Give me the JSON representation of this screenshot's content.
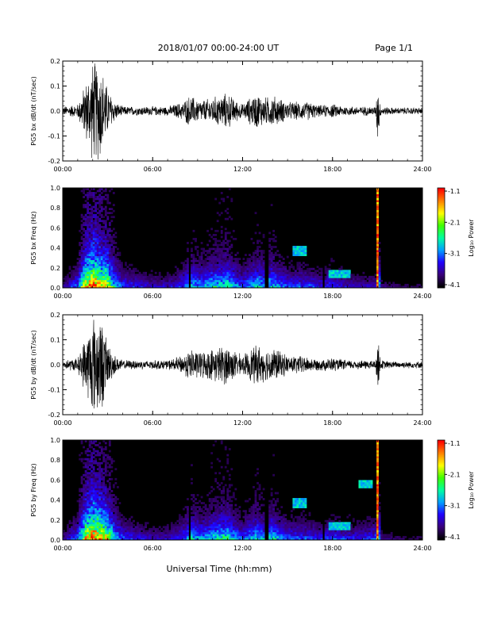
{
  "header": {
    "title": "2018/01/07  00:00-24:00 UT",
    "page": "Page 1/1"
  },
  "footer": {
    "xlabel": "Universal Time (hh:mm)"
  },
  "colors": {
    "trace": "#000000",
    "spectrogram_background": "#000000",
    "colormap": [
      "#000000",
      "#3a007a",
      "#2000ff",
      "#00a0ff",
      "#00ffa0",
      "#40ff00",
      "#ffff00",
      "#ff8000",
      "#ff0000"
    ]
  },
  "chart_data": [
    {
      "type": "line",
      "name": "bx-waveform",
      "ylabel": "PG5 bx dB/dt (nT/sec)",
      "xlim": [
        0,
        24
      ],
      "ylim": [
        -0.2,
        0.2
      ],
      "x_ticks": [
        "00:00",
        "06:00",
        "12:00",
        "18:00",
        "24:00"
      ],
      "y_ticks": [
        "-0.2",
        "-0.1",
        "0.0",
        "0.1",
        "0.2"
      ],
      "envelope": {
        "x_hours": [
          0,
          1,
          1.5,
          2,
          2.5,
          3,
          3.5,
          4,
          5,
          6,
          7,
          8,
          8.5,
          9,
          9.5,
          10,
          11,
          11.5,
          12,
          12.5,
          13,
          13.5,
          14,
          15,
          16,
          16.5,
          17,
          18,
          19,
          20,
          20.9,
          21,
          21.2,
          22,
          23,
          24
        ],
        "amplitude": [
          0.02,
          0.03,
          0.12,
          0.22,
          0.22,
          0.1,
          0.04,
          0.02,
          0.02,
          0.02,
          0.02,
          0.04,
          0.07,
          0.05,
          0.05,
          0.06,
          0.08,
          0.05,
          0.03,
          0.06,
          0.08,
          0.06,
          0.07,
          0.04,
          0.04,
          0.04,
          0.025,
          0.03,
          0.02,
          0.02,
          0.02,
          0.15,
          0.02,
          0.015,
          0.015,
          0.015
        ]
      }
    },
    {
      "type": "heatmap",
      "name": "bx-spectrogram",
      "ylabel": "PG5 bx Freq (Hz)",
      "xlim": [
        0,
        24
      ],
      "ylim": [
        0,
        1.0
      ],
      "x_ticks": [
        "00:00",
        "06:00",
        "12:00",
        "18:00",
        "24:00"
      ],
      "y_ticks": [
        "0.0",
        "0.2",
        "0.4",
        "0.6",
        "0.8",
        "1.0"
      ],
      "colorbar": {
        "label": "Log₁₀ Power",
        "range": [
          -4.1,
          -1.1
        ],
        "ticks": [
          "-1.1",
          "-2.1",
          "-3.1",
          "-4.1"
        ]
      },
      "activity_hours": [
        0,
        1,
        1.5,
        2,
        2.5,
        3,
        3.5,
        4,
        5,
        6,
        7,
        8,
        8.5,
        9,
        9.5,
        10,
        11,
        11.5,
        12,
        12.5,
        13,
        13.5,
        14,
        15,
        16,
        16.5,
        17,
        18,
        19,
        20,
        20.9,
        21,
        21.2,
        22,
        23,
        24
      ],
      "activity_level": [
        0.15,
        0.35,
        0.75,
        0.9,
        0.8,
        0.7,
        0.45,
        0.3,
        0.25,
        0.2,
        0.2,
        0.3,
        0.45,
        0.4,
        0.4,
        0.45,
        0.5,
        0.4,
        0.3,
        0.4,
        0.45,
        0.4,
        0.45,
        0.3,
        0.3,
        0.3,
        0.25,
        0.3,
        0.2,
        0.2,
        0.2,
        1.0,
        0.15,
        0.12,
        0.1,
        0.1
      ],
      "dark_gaps_hours": [
        8.5,
        13.6,
        17.4
      ],
      "narrowband": [
        {
          "hours": [
            15.3,
            16.2
          ],
          "freq_hz": 0.37
        },
        {
          "hours": [
            17.8,
            19.2
          ],
          "freq_hz": 0.15
        }
      ]
    },
    {
      "type": "line",
      "name": "by-waveform",
      "ylabel": "PG5 by dB/dt (nT/sec)",
      "xlim": [
        0,
        24
      ],
      "ylim": [
        -0.2,
        0.2
      ],
      "x_ticks": [
        "00:00",
        "06:00",
        "12:00",
        "18:00",
        "24:00"
      ],
      "y_ticks": [
        "-0.2",
        "-0.1",
        "0.0",
        "0.1",
        "0.2"
      ],
      "envelope": {
        "x_hours": [
          0,
          1,
          1.5,
          2,
          2.5,
          3,
          3.5,
          4,
          5,
          6,
          7,
          8,
          8.5,
          9,
          9.5,
          10,
          11,
          11.5,
          12,
          12.5,
          13,
          13.5,
          14,
          15,
          16,
          16.5,
          17,
          18,
          19,
          20,
          20.9,
          21,
          21.2,
          22,
          23,
          24
        ],
        "amplitude": [
          0.02,
          0.03,
          0.12,
          0.22,
          0.22,
          0.1,
          0.04,
          0.02,
          0.02,
          0.02,
          0.02,
          0.04,
          0.07,
          0.06,
          0.06,
          0.07,
          0.09,
          0.06,
          0.04,
          0.07,
          0.09,
          0.07,
          0.08,
          0.04,
          0.04,
          0.03,
          0.025,
          0.03,
          0.02,
          0.02,
          0.02,
          0.15,
          0.02,
          0.015,
          0.015,
          0.015
        ]
      }
    },
    {
      "type": "heatmap",
      "name": "by-spectrogram",
      "ylabel": "PG5 by Freq (Hz)",
      "xlim": [
        0,
        24
      ],
      "ylim": [
        0,
        1.0
      ],
      "x_ticks": [
        "00:00",
        "06:00",
        "12:00",
        "18:00",
        "24:00"
      ],
      "y_ticks": [
        "0.0",
        "0.2",
        "0.4",
        "0.6",
        "0.8",
        "1.0"
      ],
      "colorbar": {
        "label": "Log₁₀ Power",
        "range": [
          -4.1,
          -1.1
        ],
        "ticks": [
          "-1.1",
          "-2.1",
          "-3.1",
          "-4.1"
        ]
      },
      "activity_hours": [
        0,
        1,
        1.5,
        2,
        2.5,
        3,
        3.5,
        4,
        5,
        6,
        7,
        8,
        8.5,
        9,
        9.5,
        10,
        11,
        11.5,
        12,
        12.5,
        13,
        13.5,
        14,
        15,
        16,
        16.5,
        17,
        18,
        19,
        20,
        20.9,
        21,
        21.2,
        22,
        23,
        24
      ],
      "activity_level": [
        0.15,
        0.35,
        0.75,
        0.9,
        0.8,
        0.7,
        0.45,
        0.3,
        0.25,
        0.2,
        0.2,
        0.3,
        0.45,
        0.4,
        0.4,
        0.45,
        0.5,
        0.4,
        0.3,
        0.4,
        0.45,
        0.4,
        0.45,
        0.3,
        0.3,
        0.3,
        0.25,
        0.3,
        0.25,
        0.25,
        0.3,
        1.0,
        0.15,
        0.12,
        0.1,
        0.1
      ],
      "dark_gaps_hours": [
        8.5,
        13.6,
        17.4
      ],
      "narrowband": [
        {
          "hours": [
            15.3,
            16.2
          ],
          "freq_hz": 0.37
        },
        {
          "hours": [
            17.8,
            19.2
          ],
          "freq_hz": 0.15
        },
        {
          "hours": [
            19.8,
            20.7
          ],
          "freq_hz": 0.55
        }
      ]
    }
  ]
}
